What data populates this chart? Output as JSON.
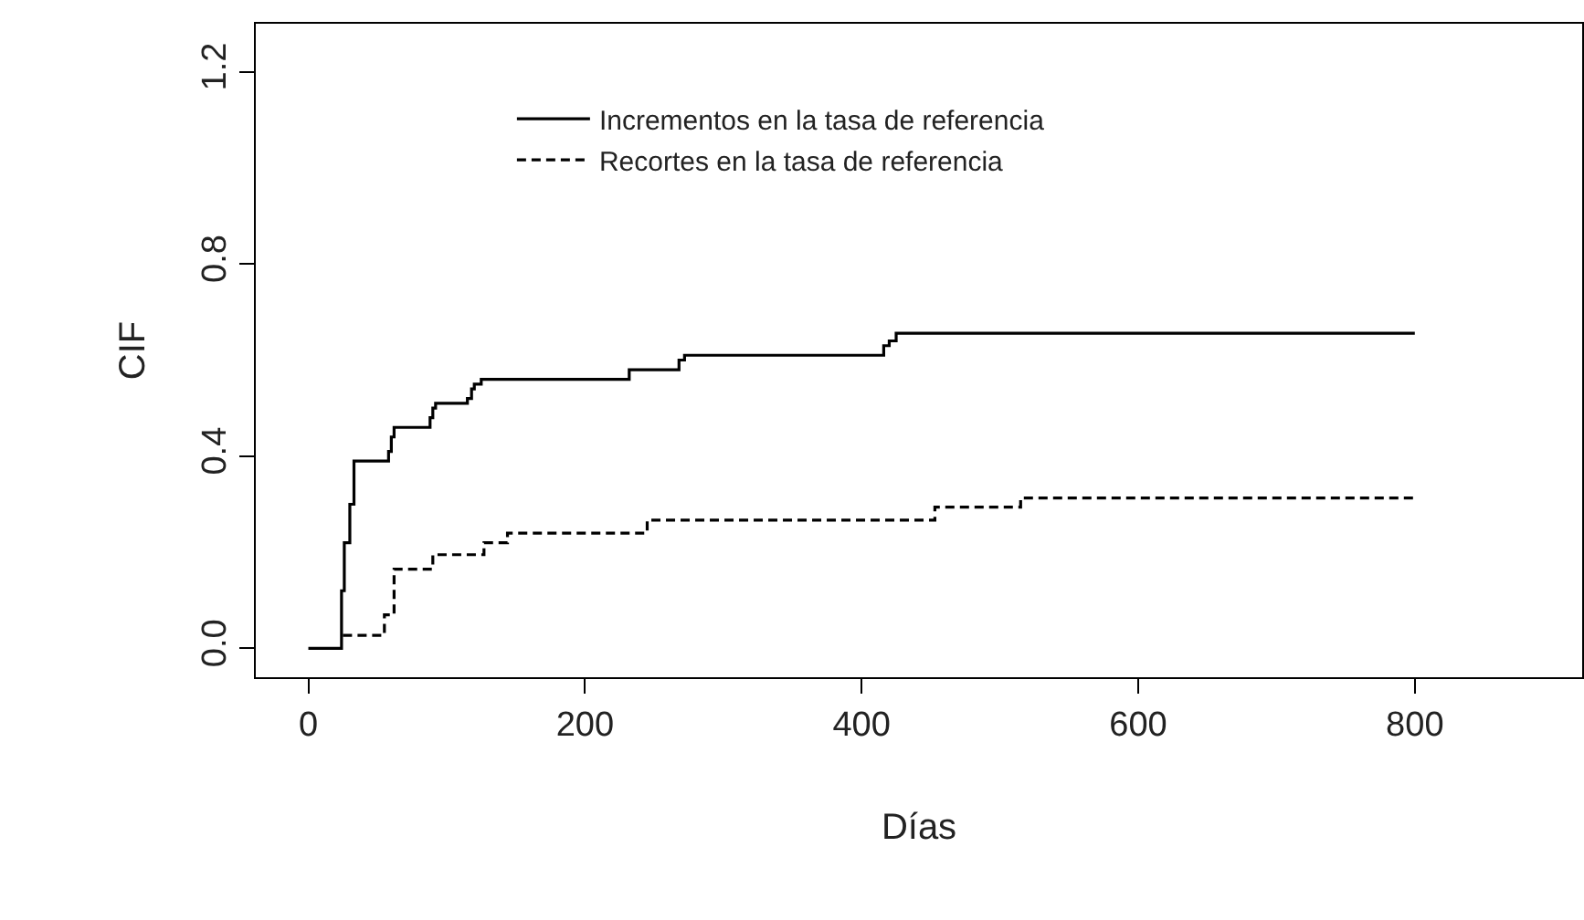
{
  "chart_data": {
    "type": "step",
    "xlabel": "Días",
    "ylabel": "CIF",
    "xlim": [
      -38,
      921
    ],
    "ylim": [
      -0.06,
      1.3
    ],
    "xticks": [
      0,
      200,
      400,
      600,
      800
    ],
    "yticks": [
      {
        "value": 0,
        "label": "0.0"
      },
      0.4,
      0.8,
      1.2
    ],
    "legend": "top",
    "marker": "none",
    "series": [
      {
        "name": "Incrementos en la tasa de referencia",
        "color": "#000000",
        "line_style": "solid",
        "x": [
          0,
          24,
          26,
          30,
          33,
          58,
          60,
          62,
          88,
          90,
          92,
          115,
          118,
          120,
          125,
          232,
          235,
          268,
          272,
          416,
          420,
          425,
          800
        ],
        "values": [
          0,
          0.12,
          0.22,
          0.3,
          0.39,
          0.41,
          0.44,
          0.46,
          0.48,
          0.5,
          0.51,
          0.52,
          0.54,
          0.55,
          0.56,
          0.58,
          0.58,
          0.6,
          0.61,
          0.63,
          0.64,
          0.656,
          0.656
        ]
      },
      {
        "name": "Recortes en la tasa de referencia",
        "color": "#000000",
        "line_style": "dashed",
        "x": [
          25,
          55,
          62,
          90,
          127,
          144,
          245,
          453,
          515,
          800
        ],
        "values": [
          0.027,
          0.07,
          0.165,
          0.195,
          0.22,
          0.24,
          0.267,
          0.294,
          0.313,
          0.313
        ]
      }
    ]
  }
}
